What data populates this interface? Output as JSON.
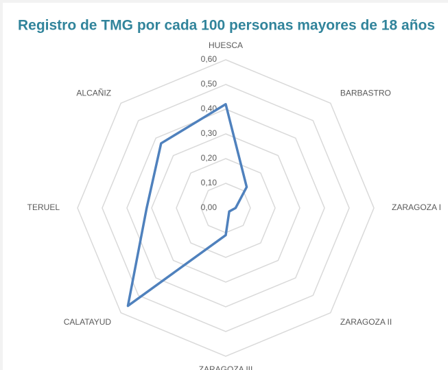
{
  "chart_data": {
    "type": "radar",
    "title": "Registro de TMG por cada 100 personas mayores de 18 años",
    "categories": [
      "HUESCA",
      "BARBASTRO",
      "ZARAGOZA I",
      "ZARAGOZA II",
      "ZARAGOZA III",
      "CALATAYUD",
      "TERUEL",
      "ALCAÑIZ"
    ],
    "values": [
      0.42,
      0.12,
      0.04,
      0.02,
      0.11,
      0.56,
      0.32,
      0.37
    ],
    "color": "#4F81BD",
    "ylim": [
      0,
      0.6
    ],
    "yticks": [
      {
        "value": 0,
        "label": "0,00"
      },
      {
        "value": 0.1,
        "label": "0,10"
      },
      {
        "value": 0.2,
        "label": "0,20"
      },
      {
        "value": 0.3,
        "label": "0,30"
      },
      {
        "value": 0.4,
        "label": "0,40"
      },
      {
        "value": 0.5,
        "label": "0,50"
      },
      {
        "value": 0.6,
        "label": "0,60"
      }
    ],
    "grid": true
  }
}
